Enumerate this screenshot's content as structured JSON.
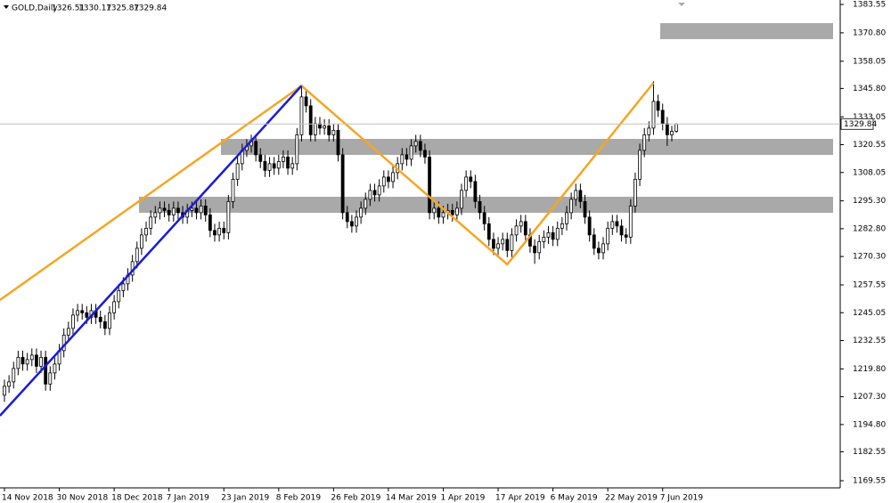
{
  "chart_data": {
    "type": "candlestick",
    "title": "GOLD,Daily",
    "categories": [
      "14 Nov 2018",
      null,
      null,
      null,
      null,
      null,
      null,
      null,
      null,
      null,
      null,
      null,
      "30 Nov 2018",
      null,
      null,
      null,
      null,
      null,
      null,
      null,
      null,
      null,
      null,
      null,
      "18 Dec 2018",
      null,
      null,
      null,
      null,
      null,
      null,
      null,
      null,
      null,
      null,
      null,
      "7 Jan 2019",
      null,
      null,
      null,
      null,
      null,
      null,
      null,
      null,
      null,
      null,
      null,
      "23 Jan 2019",
      null,
      null,
      null,
      null,
      null,
      null,
      null,
      null,
      null,
      null,
      null,
      "8 Feb 2019",
      null,
      null,
      null,
      null,
      null,
      null,
      null,
      null,
      null,
      null,
      null,
      "26 Feb 2019",
      null,
      null,
      null,
      null,
      null,
      null,
      null,
      null,
      null,
      null,
      null,
      "14 Mar 2019",
      null,
      null,
      null,
      null,
      null,
      null,
      null,
      null,
      null,
      null,
      null,
      "1 Apr 2019",
      null,
      null,
      null,
      null,
      null,
      null,
      null,
      null,
      null,
      null,
      null,
      "17 Apr 2019",
      null,
      null,
      null,
      null,
      null,
      null,
      null,
      null,
      null,
      null,
      null,
      "6 May 2019",
      null,
      null,
      null,
      null,
      null,
      null,
      null,
      null,
      null,
      null,
      null,
      "22 May 2019",
      null,
      null,
      null,
      null,
      null,
      null,
      null,
      null,
      null,
      null,
      null,
      "7 Jun 2019",
      null,
      null,
      null
    ],
    "open": [
      1208,
      1212,
      1214,
      1220,
      1225,
      1222,
      1224,
      1226,
      1221,
      1225,
      1213,
      1218,
      1222,
      1228,
      1235,
      1238,
      1244,
      1246,
      1245,
      1243,
      1246,
      1243,
      1241,
      1238,
      1245,
      1250,
      1255,
      1258,
      1262,
      1268,
      1274,
      1280,
      1283,
      1288,
      1290,
      1292,
      1291,
      1289,
      1292,
      1290,
      1288,
      1291,
      1292,
      1290,
      1293,
      1289,
      1282,
      1280,
      1283,
      1281,
      1295,
      1305,
      1312,
      1318,
      1320,
      1322,
      1316,
      1313,
      1309,
      1312,
      1310,
      1313,
      1315,
      1310,
      1312,
      1325,
      1342,
      1338,
      1325,
      1330,
      1328,
      1329,
      1325,
      1327,
      1316,
      1290,
      1286,
      1284,
      1288,
      1292,
      1296,
      1300,
      1298,
      1302,
      1306,
      1304,
      1308,
      1312,
      1316,
      1314,
      1320,
      1322,
      1318,
      1315,
      1290,
      1292,
      1288,
      1290,
      1291,
      1289,
      1292,
      1300,
      1306,
      1304,
      1295,
      1290,
      1285,
      1278,
      1274,
      1276,
      1278,
      1273,
      1280,
      1284,
      1286,
      1280,
      1275,
      1272,
      1277,
      1279,
      1281,
      1278,
      1283,
      1285,
      1290,
      1296,
      1300,
      1295,
      1288,
      1280,
      1274,
      1272,
      1276,
      1283,
      1286,
      1284,
      1280,
      1279,
      1293,
      1305,
      1318,
      1325,
      1328,
      1340,
      1336,
      1330,
      1325,
      1326.51
    ],
    "high": [
      1215,
      1217,
      1223,
      1228,
      1228,
      1227,
      1229,
      1229,
      1228,
      1228,
      1221,
      1225,
      1231,
      1238,
      1241,
      1247,
      1249,
      1249,
      1248,
      1249,
      1249,
      1246,
      1244,
      1248,
      1253,
      1258,
      1261,
      1265,
      1271,
      1277,
      1283,
      1286,
      1291,
      1293,
      1295,
      1295,
      1294,
      1295,
      1295,
      1293,
      1294,
      1295,
      1295,
      1296,
      1296,
      1292,
      1285,
      1286,
      1286,
      1298,
      1308,
      1315,
      1321,
      1323,
      1325,
      1325,
      1319,
      1316,
      1315,
      1315,
      1316,
      1318,
      1318,
      1315,
      1328,
      1347,
      1345,
      1341,
      1333,
      1333,
      1332,
      1332,
      1330,
      1330,
      1319,
      1293,
      1289,
      1291,
      1295,
      1299,
      1303,
      1303,
      1305,
      1309,
      1309,
      1311,
      1315,
      1319,
      1319,
      1323,
      1325,
      1325,
      1321,
      1318,
      1295,
      1295,
      1293,
      1294,
      1294,
      1295,
      1303,
      1309,
      1309,
      1307,
      1298,
      1293,
      1288,
      1281,
      1279,
      1281,
      1281,
      1283,
      1287,
      1289,
      1289,
      1283,
      1278,
      1280,
      1282,
      1284,
      1284,
      1286,
      1288,
      1293,
      1299,
      1303,
      1303,
      1298,
      1291,
      1283,
      1277,
      1279,
      1286,
      1289,
      1289,
      1287,
      1283,
      1296,
      1308,
      1321,
      1328,
      1331,
      1349,
      1343,
      1339,
      1333,
      1329,
      1330.17
    ],
    "low": [
      1205,
      1209,
      1211,
      1217,
      1219,
      1219,
      1221,
      1218,
      1218,
      1210,
      1210,
      1215,
      1219,
      1225,
      1232,
      1235,
      1241,
      1242,
      1240,
      1240,
      1240,
      1238,
      1235,
      1235,
      1242,
      1247,
      1252,
      1255,
      1259,
      1265,
      1271,
      1277,
      1280,
      1285,
      1287,
      1288,
      1286,
      1286,
      1287,
      1285,
      1285,
      1288,
      1287,
      1287,
      1286,
      1279,
      1277,
      1277,
      1278,
      1278,
      1292,
      1302,
      1309,
      1315,
      1317,
      1313,
      1310,
      1306,
      1306,
      1307,
      1307,
      1310,
      1307,
      1307,
      1309,
      1322,
      1335,
      1322,
      1322,
      1325,
      1325,
      1322,
      1322,
      1313,
      1287,
      1283,
      1281,
      1281,
      1285,
      1289,
      1293,
      1295,
      1295,
      1299,
      1301,
      1301,
      1305,
      1309,
      1311,
      1311,
      1317,
      1315,
      1312,
      1287,
      1287,
      1285,
      1285,
      1287,
      1286,
      1286,
      1289,
      1297,
      1301,
      1292,
      1287,
      1282,
      1275,
      1271,
      1271,
      1273,
      1270,
      1270,
      1277,
      1281,
      1277,
      1272,
      1267,
      1269,
      1274,
      1276,
      1275,
      1275,
      1280,
      1282,
      1287,
      1293,
      1292,
      1285,
      1277,
      1271,
      1269,
      1269,
      1273,
      1280,
      1281,
      1277,
      1276,
      1276,
      1290,
      1302,
      1315,
      1322,
      1325,
      1333,
      1327,
      1320,
      1322,
      1325.87
    ],
    "close": [
      1212,
      1214,
      1220,
      1225,
      1222,
      1224,
      1226,
      1221,
      1225,
      1213,
      1218,
      1222,
      1228,
      1235,
      1238,
      1244,
      1246,
      1245,
      1243,
      1246,
      1243,
      1241,
      1238,
      1245,
      1250,
      1255,
      1258,
      1262,
      1268,
      1274,
      1280,
      1283,
      1288,
      1290,
      1292,
      1291,
      1289,
      1292,
      1290,
      1288,
      1291,
      1292,
      1290,
      1293,
      1289,
      1282,
      1280,
      1283,
      1281,
      1295,
      1305,
      1312,
      1318,
      1320,
      1322,
      1316,
      1313,
      1309,
      1312,
      1310,
      1313,
      1315,
      1310,
      1312,
      1325,
      1342,
      1338,
      1325,
      1330,
      1328,
      1329,
      1325,
      1327,
      1316,
      1290,
      1286,
      1284,
      1288,
      1292,
      1296,
      1300,
      1298,
      1302,
      1306,
      1304,
      1308,
      1312,
      1316,
      1314,
      1320,
      1322,
      1318,
      1315,
      1290,
      1292,
      1288,
      1290,
      1291,
      1289,
      1292,
      1300,
      1306,
      1304,
      1295,
      1290,
      1285,
      1278,
      1274,
      1276,
      1278,
      1273,
      1280,
      1284,
      1286,
      1280,
      1275,
      1272,
      1277,
      1279,
      1281,
      1278,
      1283,
      1285,
      1290,
      1296,
      1300,
      1295,
      1288,
      1280,
      1274,
      1272,
      1276,
      1283,
      1286,
      1284,
      1280,
      1279,
      1293,
      1305,
      1318,
      1325,
      1328,
      1340,
      1336,
      1330,
      1325,
      1326.51,
      1329.84
    ],
    "ylim": [
      1169.55,
      1383.55
    ],
    "yticks": [
      1383.55,
      {
        "value": 1370.8,
        "label": "1370.80"
      },
      1358.05,
      {
        "value": 1345.8,
        "label": "1345.80"
      },
      1333.05,
      1320.55,
      1308.05,
      {
        "value": 1295.3,
        "label": "1295.30"
      },
      {
        "value": 1282.8,
        "label": "1282.80"
      },
      {
        "value": 1270.3,
        "label": "1270.30"
      },
      1257.55,
      1245.05,
      1232.55,
      {
        "value": 1219.8,
        "label": "1219.80"
      },
      {
        "value": 1207.3,
        "label": "1207.30"
      },
      {
        "value": 1194.8,
        "label": "1194.80"
      },
      1182.55,
      1169.55
    ],
    "zones": [
      {
        "low": 1315.95,
        "high": 1323.15,
        "color": "#a9a9a9"
      },
      {
        "low": 1289.95,
        "high": 1297.15,
        "color": "#a9a9a9"
      },
      {
        "low": 1367.95,
        "high": 1375.15,
        "color": "#a9a9a9"
      }
    ],
    "trendlines": [
      {
        "color": "#f5a623",
        "x": [
          -1,
          65,
          110,
          142
        ],
        "y": [
          1250.75,
          1347,
          1266.75,
          1348.35
        ]
      },
      {
        "color": "#1a1adc",
        "x": [
          -1,
          65
        ],
        "y": [
          1198.75,
          1347
        ]
      }
    ]
  }
}
